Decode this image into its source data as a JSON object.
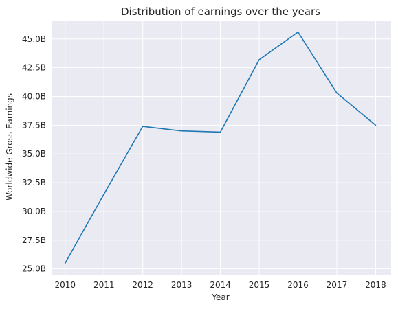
{
  "chart_data": {
    "type": "line",
    "title": "Distribution of earnings over the years",
    "xlabel": "Year",
    "ylabel": "Worldwide Gross Earnings",
    "x": [
      2010,
      2011,
      2012,
      2013,
      2014,
      2015,
      2016,
      2017,
      2018
    ],
    "x_tick_labels": [
      "2010",
      "2011",
      "2012",
      "2013",
      "2014",
      "2015",
      "2016",
      "2017",
      "2018"
    ],
    "series": [
      {
        "name": "Worldwide Gross Earnings",
        "values": [
          25.5,
          31.5,
          37.4,
          37.0,
          36.9,
          43.2,
          45.6,
          40.3,
          37.5
        ]
      }
    ],
    "y_ticks": [
      25.0,
      27.5,
      30.0,
      32.5,
      35.0,
      37.5,
      40.0,
      42.5,
      45.0
    ],
    "y_tick_labels": [
      "25.0B",
      "27.5B",
      "30.0B",
      "32.5B",
      "35.0B",
      "37.5B",
      "40.0B",
      "42.5B",
      "45.0B"
    ],
    "xlim": [
      2009.65,
      2018.4
    ],
    "ylim": [
      24.5,
      46.6
    ],
    "grid": true,
    "colors": {
      "plot_background": "#eaeaf2",
      "grid": "#ffffff",
      "line": "#1f77b4",
      "text": "#262626"
    }
  }
}
